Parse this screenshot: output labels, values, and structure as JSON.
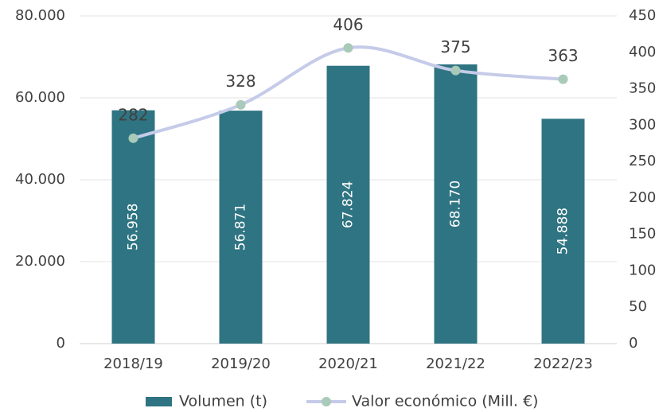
{
  "chart_data": {
    "type": "bar",
    "categories": [
      "2018/19",
      "2019/20",
      "2020/21",
      "2021/22",
      "2022/23"
    ],
    "series": [
      {
        "name": "Volumen (t)",
        "color": "#2f7482",
        "values": [
          56958,
          56871,
          67824,
          68170,
          54888
        ],
        "value_labels": [
          "56.958",
          "56.871",
          "67.824",
          "68.170",
          "54.888"
        ]
      },
      {
        "name": "Valor económico (Mill. €)",
        "color": "#c5cbe8",
        "marker_color": "#a9cab8",
        "type": "line",
        "axis": "y2",
        "values": [
          282,
          328,
          406,
          375,
          363
        ]
      }
    ],
    "ylim": [
      0,
      80000
    ],
    "yticks": [
      0,
      {
        "value": 20000,
        "label": "20.000"
      },
      {
        "value": 40000,
        "label": "40.000"
      },
      {
        "value": 60000,
        "label": "60.000"
      },
      {
        "value": 80000,
        "label": "80.000"
      }
    ],
    "y2lim": [
      0,
      450
    ],
    "y2ticks": [
      0,
      50,
      100,
      150,
      200,
      250,
      300,
      350,
      400,
      450
    ],
    "grid": true,
    "legend": "bottom"
  }
}
